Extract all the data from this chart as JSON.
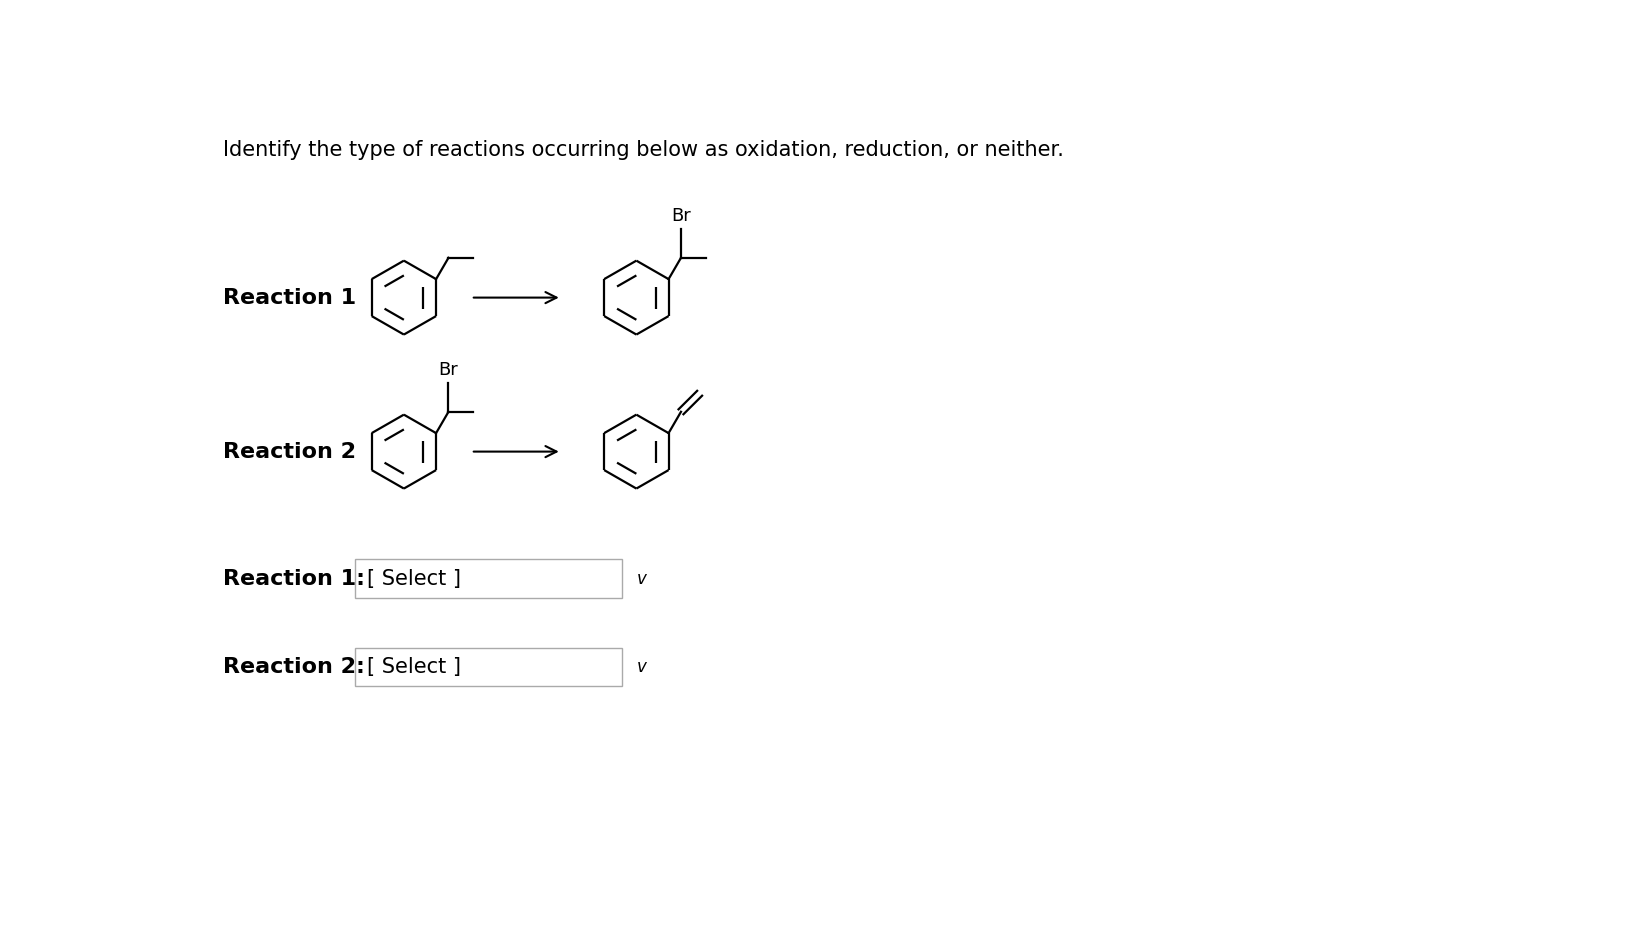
{
  "title": "Identify the type of reactions occurring below as oxidation, reduction, or neither.",
  "title_fontsize": 15,
  "reaction1_label": "Reaction 1",
  "reaction2_label": "Reaction 2",
  "reaction1_select_label": "Reaction 1:",
  "reaction2_select_label": "Reaction 2:",
  "select_text": "[ Select ]",
  "background_color": "#ffffff",
  "text_color": "#000000",
  "line_color": "#000000",
  "label_fontsize": 16,
  "select_fontsize": 15,
  "ring_r": 0.48,
  "lw": 1.6
}
